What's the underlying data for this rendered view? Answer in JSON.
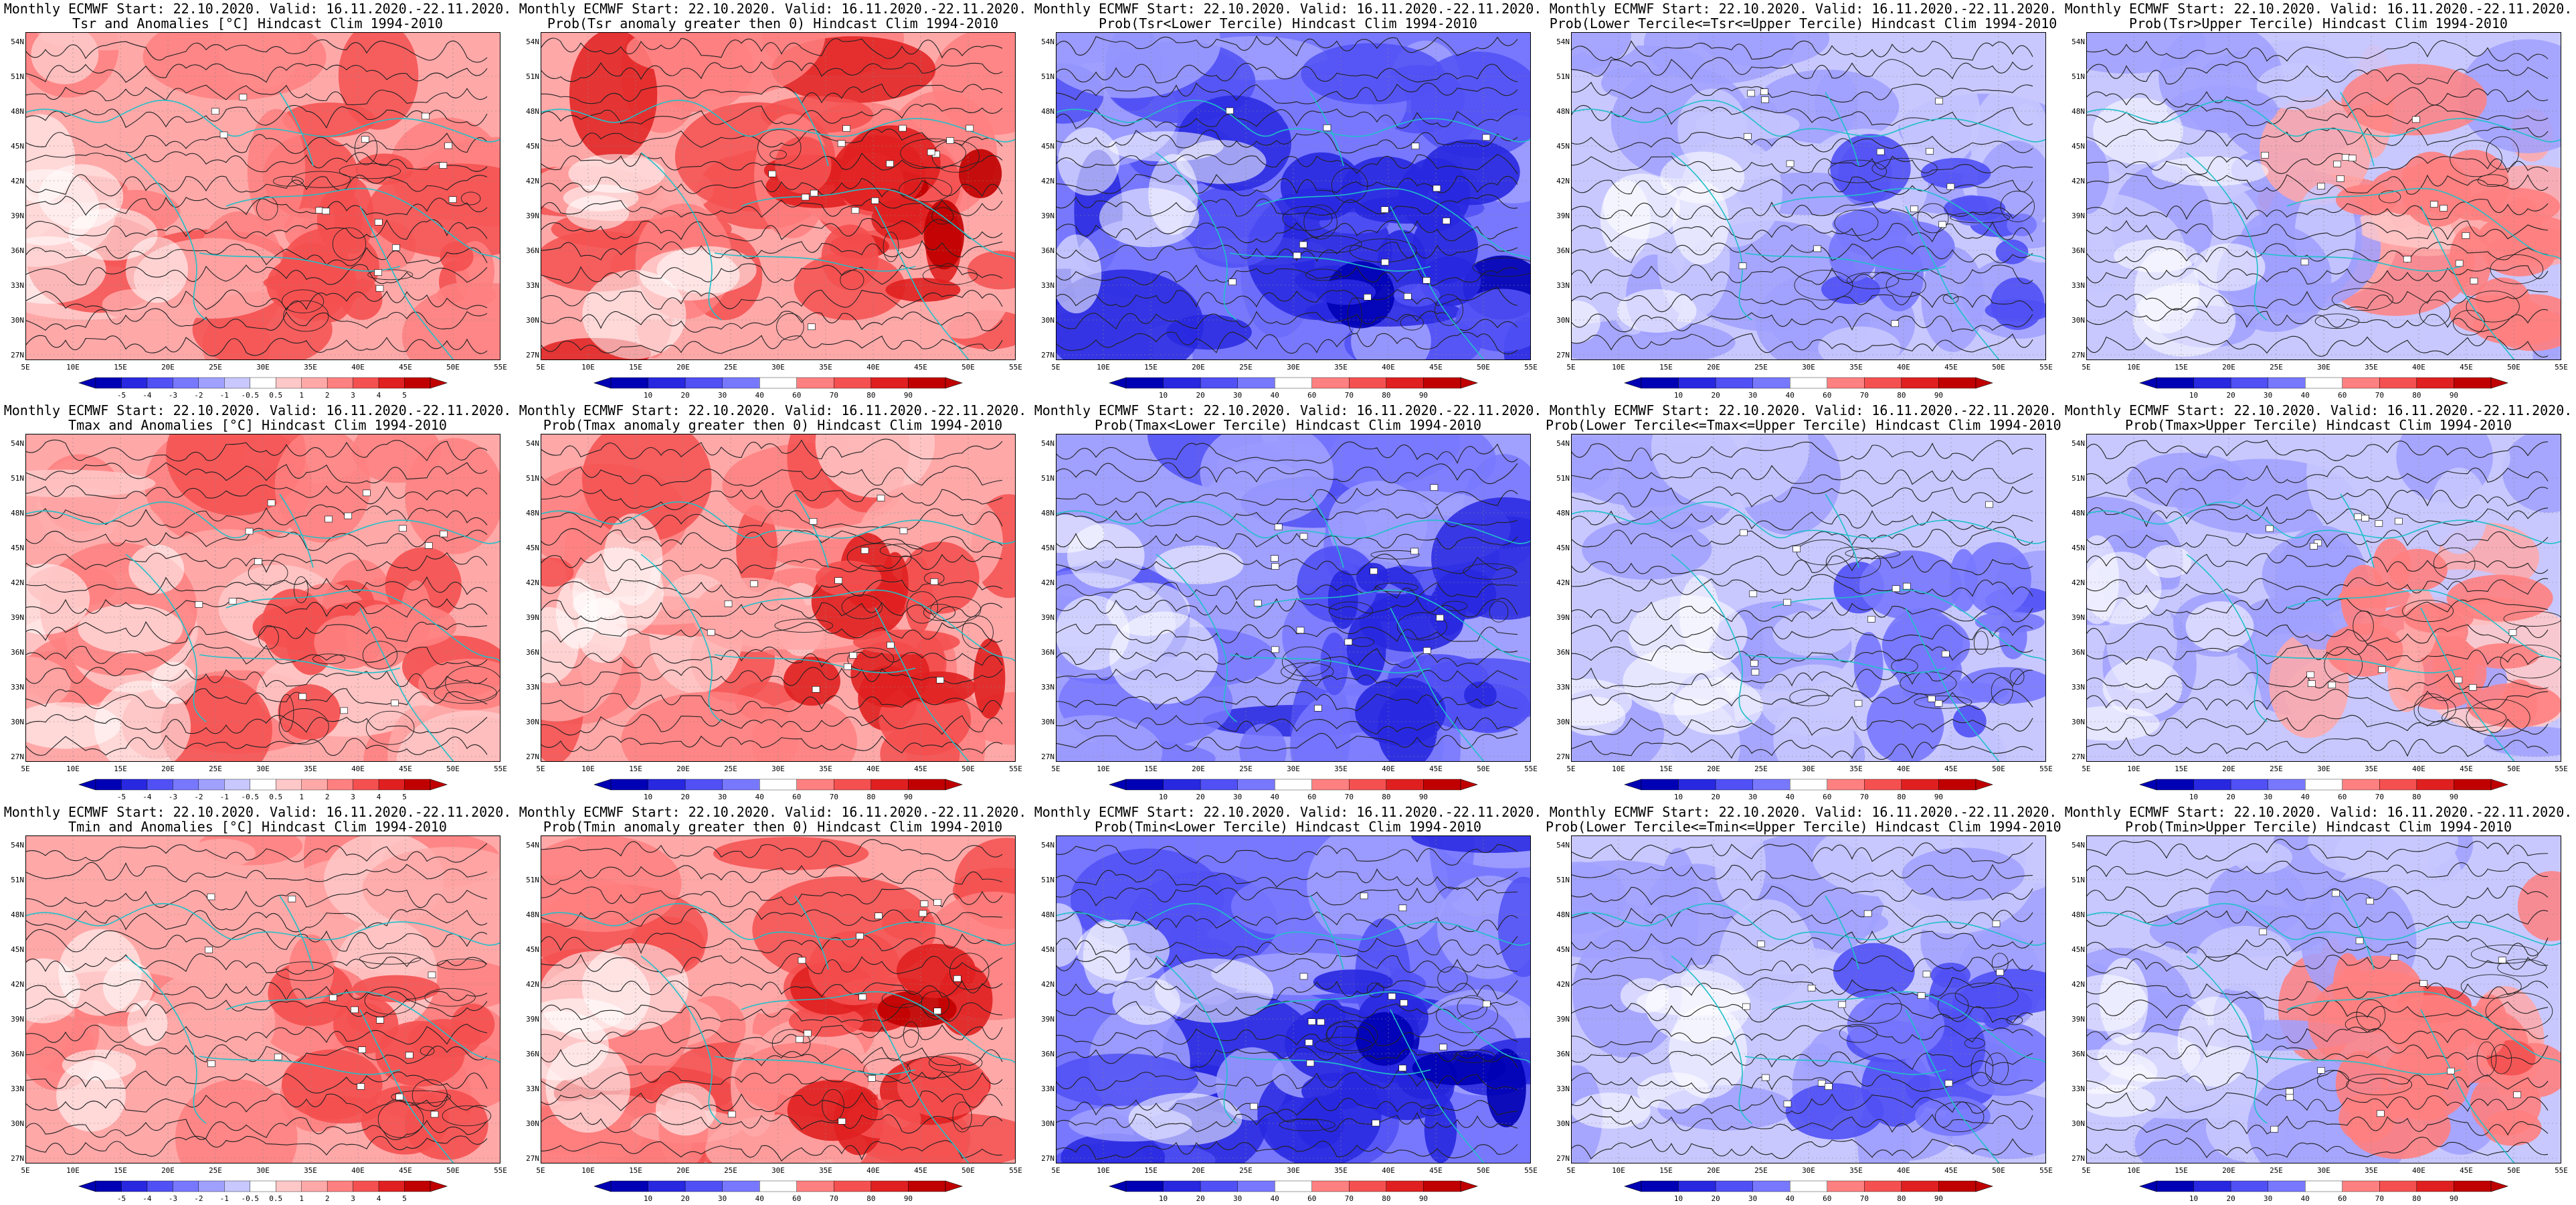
{
  "colors": {
    "red": [
      "#ffe6e6",
      "#ffc8c8",
      "#ffa8a8",
      "#ff8080",
      "#f55050",
      "#e02020",
      "#c00000"
    ],
    "blue": [
      "#ebebff",
      "#c8c8ff",
      "#a0a0ff",
      "#7878ff",
      "#5050f5",
      "#2828e0",
      "#0000b4"
    ],
    "contour": "#222222",
    "coast": "#20c0c8"
  },
  "axes": {
    "lat_labels": [
      "54N",
      "51N",
      "48N",
      "45N",
      "42N",
      "39N",
      "36N",
      "33N",
      "30N",
      "27N"
    ],
    "lon_labels": [
      "5E",
      "10E",
      "15E",
      "20E",
      "25E",
      "30E",
      "35E",
      "40E",
      "45E",
      "50E",
      "55E"
    ]
  },
  "colorbars": {
    "anomaly": [
      "-5",
      "-4",
      "-3",
      "-2",
      "-1",
      "-0.5",
      "0.5",
      "1",
      "2",
      "3",
      "4",
      "5"
    ],
    "probability": [
      "10",
      "20",
      "30",
      "40",
      "60",
      "70",
      "80",
      "90"
    ]
  },
  "rows": [
    {
      "panels": [
        {
          "line1": "Monthly ECMWF Start: 22.10.2020. Valid: 16.11.2020.-22.11.2020.",
          "line2": "Tsr and Anomalies [°C] Hindcast Clim 1994-2010",
          "scale": "anomaly",
          "palette": "red",
          "level": 0.55,
          "core_level": 0.75
        },
        {
          "line1": "Monthly ECMWF Start: 22.10.2020. Valid: 16.11.2020.-22.11.2020.",
          "line2": "Prob(Tsr anomaly greater then 0) Hindcast Clim 1994-2010",
          "scale": "probability",
          "palette": "red",
          "level": 0.65,
          "core_level": 0.95
        },
        {
          "line1": "Monthly ECMWF Start: 22.10.2020. Valid: 16.11.2020.-22.11.2020.",
          "line2": "Prob(Tsr<Lower Tercile) Hindcast Clim 1994-2010",
          "scale": "probability",
          "palette": "blue",
          "level": 0.7,
          "core_level": 0.95
        },
        {
          "line1": "Monthly ECMWF Start: 22.10.2020. Valid: 16.11.2020.-22.11.2020.",
          "line2": "Prob(Lower Tercile<=Tsr<=Upper Tercile) Hindcast Clim 1994-2010",
          "scale": "probability",
          "palette": "blue",
          "level": 0.35,
          "core_level": 0.7
        },
        {
          "line1": "Monthly ECMWF Start: 22.10.2020. Valid: 16.11.2020.-22.11.2020.",
          "line2": "Prob(Tsr>Upper Tercile) Hindcast Clim 1994-2010",
          "scale": "probability",
          "palette": "mixed",
          "level": 0.3,
          "core_level": 0.6
        }
      ]
    },
    {
      "panels": [
        {
          "line1": "Monthly ECMWF Start: 22.10.2020. Valid: 16.11.2020.-22.11.2020.",
          "line2": "Tmax and Anomalies [°C] Hindcast Clim 1994-2010",
          "scale": "anomaly",
          "palette": "red",
          "level": 0.5,
          "core_level": 0.7
        },
        {
          "line1": "Monthly ECMWF Start: 22.10.2020. Valid: 16.11.2020.-22.11.2020.",
          "line2": "Prob(Tmax anomaly greater then 0) Hindcast Clim 1994-2010",
          "scale": "probability",
          "palette": "red",
          "level": 0.6,
          "core_level": 0.9
        },
        {
          "line1": "Monthly ECMWF Start: 22.10.2020. Valid: 16.11.2020.-22.11.2020.",
          "line2": "Prob(Tmax<Lower Tercile) Hindcast Clim 1994-2010",
          "scale": "probability",
          "palette": "blue",
          "level": 0.65,
          "core_level": 0.92
        },
        {
          "line1": "Monthly ECMWF Start: 22.10.2020. Valid: 16.11.2020.-22.11.2020.",
          "line2": "Prob(Lower Tercile<=Tmax<=Upper Tercile) Hindcast Clim 1994-2010",
          "scale": "probability",
          "palette": "blue",
          "level": 0.3,
          "core_level": 0.65
        },
        {
          "line1": "Monthly ECMWF Start: 22.10.2020. Valid: 16.11.2020.-22.11.2020.",
          "line2": "Prob(Tmax>Upper Tercile) Hindcast Clim 1994-2010",
          "scale": "probability",
          "palette": "mixed",
          "level": 0.25,
          "core_level": 0.55
        }
      ]
    },
    {
      "panels": [
        {
          "line1": "Monthly ECMWF Start: 22.10.2020. Valid: 16.11.2020.-22.11.2020.",
          "line2": "Tmin and Anomalies [°C] Hindcast Clim 1994-2010",
          "scale": "anomaly",
          "palette": "red",
          "level": 0.5,
          "core_level": 0.72
        },
        {
          "line1": "Monthly ECMWF Start: 22.10.2020. Valid: 16.11.2020.-22.11.2020.",
          "line2": "Prob(Tmin anomaly greater then 0) Hindcast Clim 1994-2010",
          "scale": "probability",
          "palette": "red",
          "level": 0.65,
          "core_level": 0.95
        },
        {
          "line1": "Monthly ECMWF Start: 22.10.2020. Valid: 16.11.2020.-22.11.2020.",
          "line2": "Prob(Tmin<Lower Tercile) Hindcast Clim 1994-2010",
          "scale": "probability",
          "palette": "blue",
          "level": 0.75,
          "core_level": 0.98
        },
        {
          "line1": "Monthly ECMWF Start: 22.10.2020. Valid: 16.11.2020.-22.11.2020.",
          "line2": "Prob(Lower Tercile<=Tmin<=Upper Tercile) Hindcast Clim 1994-2010",
          "scale": "probability",
          "palette": "blue",
          "level": 0.35,
          "core_level": 0.7
        },
        {
          "line1": "Monthly ECMWF Start: 22.10.2020. Valid: 16.11.2020.-22.11.2020.",
          "line2": "Prob(Tmin>Upper Tercile) Hindcast Clim 1994-2010",
          "scale": "probability",
          "palette": "mixed",
          "level": 0.3,
          "core_level": 0.6
        }
      ]
    }
  ]
}
